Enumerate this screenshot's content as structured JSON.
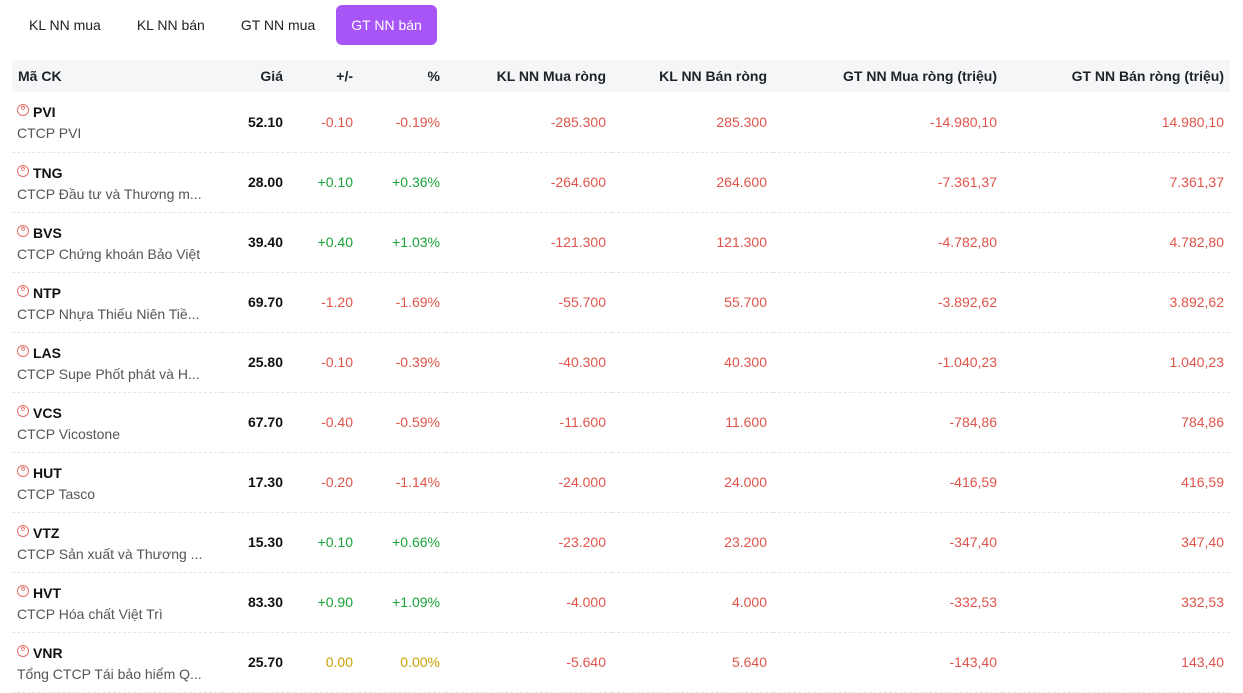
{
  "tabs": [
    {
      "label": "KL NN mua",
      "active": false
    },
    {
      "label": "KL NN bán",
      "active": false
    },
    {
      "label": "GT NN mua",
      "active": false
    },
    {
      "label": "GT NN bán",
      "active": true
    }
  ],
  "colors": {
    "accent": "#a855f7",
    "down": "#e0544b",
    "up": "#1aa33a",
    "reference": "#c9a100"
  },
  "table": {
    "headers": [
      "Mã CK",
      "Giá",
      "+/-",
      "%",
      "KL NN Mua ròng",
      "KL NN Bán ròng",
      "GT NN Mua ròng (triệu)",
      "GT NN Bán ròng (triệu)"
    ],
    "rows": [
      {
        "code": "PVI",
        "name": "CTCP PVI",
        "price": "52.10",
        "change": "-0.10",
        "pct": "-0.19%",
        "trend": "down",
        "buy_vol": "-285.300",
        "sell_vol": "285.300",
        "buy_val": "-14.980,10",
        "sell_val": "14.980,10"
      },
      {
        "code": "TNG",
        "name": "CTCP Đầu tư và Thương m...",
        "price": "28.00",
        "change": "+0.10",
        "pct": "+0.36%",
        "trend": "up",
        "buy_vol": "-264.600",
        "sell_vol": "264.600",
        "buy_val": "-7.361,37",
        "sell_val": "7.361,37"
      },
      {
        "code": "BVS",
        "name": "CTCP Chứng khoán Bảo Việt",
        "price": "39.40",
        "change": "+0.40",
        "pct": "+1.03%",
        "trend": "up",
        "buy_vol": "-121.300",
        "sell_vol": "121.300",
        "buy_val": "-4.782,80",
        "sell_val": "4.782,80"
      },
      {
        "code": "NTP",
        "name": "CTCP Nhựa Thiếu Niên Tiề...",
        "price": "69.70",
        "change": "-1.20",
        "pct": "-1.69%",
        "trend": "down",
        "buy_vol": "-55.700",
        "sell_vol": "55.700",
        "buy_val": "-3.892,62",
        "sell_val": "3.892,62"
      },
      {
        "code": "LAS",
        "name": "CTCP Supe Phốt phát và H...",
        "price": "25.80",
        "change": "-0.10",
        "pct": "-0.39%",
        "trend": "down",
        "buy_vol": "-40.300",
        "sell_vol": "40.300",
        "buy_val": "-1.040,23",
        "sell_val": "1.040,23"
      },
      {
        "code": "VCS",
        "name": "CTCP Vicostone",
        "price": "67.70",
        "change": "-0.40",
        "pct": "-0.59%",
        "trend": "down",
        "buy_vol": "-11.600",
        "sell_vol": "11.600",
        "buy_val": "-784,86",
        "sell_val": "784,86"
      },
      {
        "code": "HUT",
        "name": "CTCP Tasco",
        "price": "17.30",
        "change": "-0.20",
        "pct": "-1.14%",
        "trend": "down",
        "buy_vol": "-24.000",
        "sell_vol": "24.000",
        "buy_val": "-416,59",
        "sell_val": "416,59"
      },
      {
        "code": "VTZ",
        "name": "CTCP Sản xuất và Thương ...",
        "price": "15.30",
        "change": "+0.10",
        "pct": "+0.66%",
        "trend": "up",
        "buy_vol": "-23.200",
        "sell_vol": "23.200",
        "buy_val": "-347,40",
        "sell_val": "347,40"
      },
      {
        "code": "HVT",
        "name": "CTCP Hóa chất Việt Trì",
        "price": "83.30",
        "change": "+0.90",
        "pct": "+1.09%",
        "trend": "up",
        "buy_vol": "-4.000",
        "sell_vol": "4.000",
        "buy_val": "-332,53",
        "sell_val": "332,53"
      },
      {
        "code": "VNR",
        "name": "Tổng CTCP Tái bảo hiểm Q...",
        "price": "25.70",
        "change": "0.00",
        "pct": "0.00%",
        "trend": "ref",
        "buy_vol": "-5.640",
        "sell_vol": "5.640",
        "buy_val": "-143,40",
        "sell_val": "143,40"
      }
    ]
  }
}
